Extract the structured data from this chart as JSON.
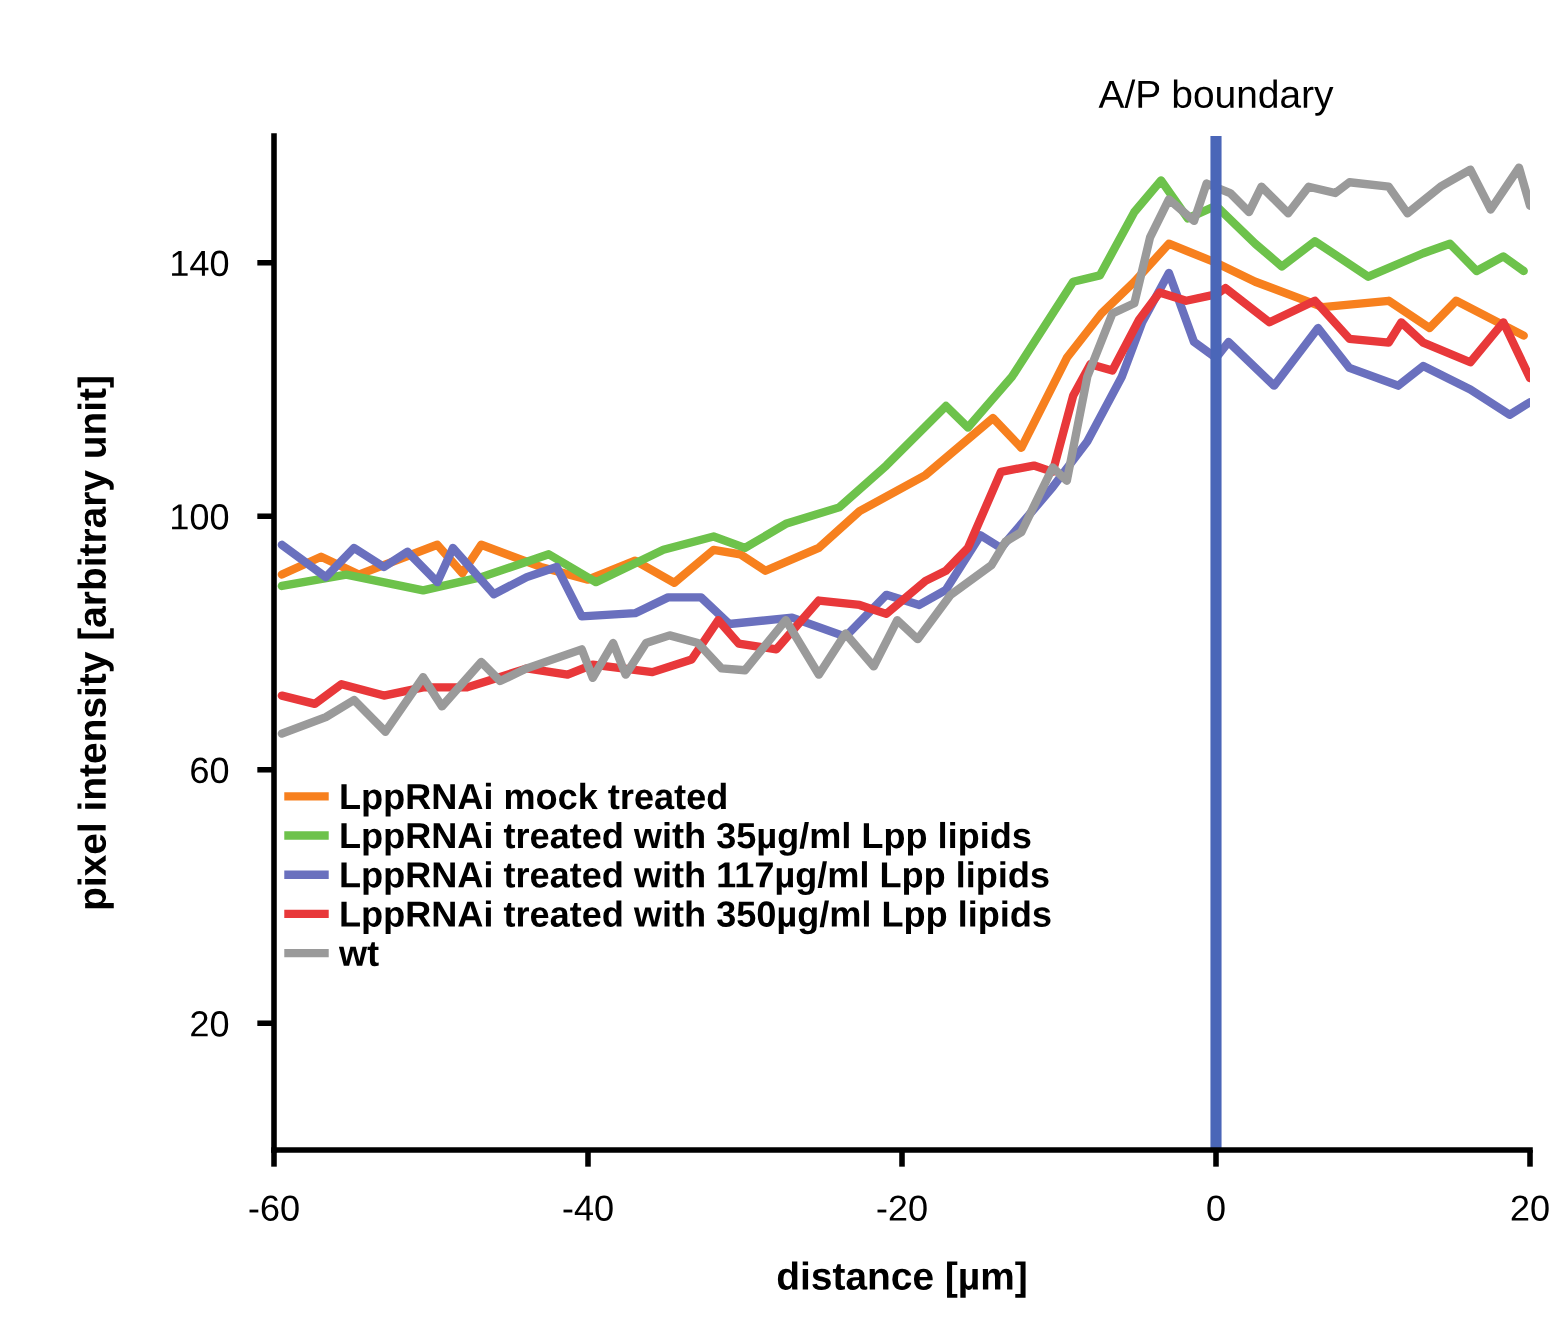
{
  "chart_data": {
    "type": "line",
    "xlabel": "distance [µm]",
    "ylabel": "pixel intensity [arbitrary unit]",
    "xlim": [
      -60,
      20
    ],
    "xticks": [
      -60,
      -40,
      -20,
      0,
      20
    ],
    "ylim": [
      0,
      160
    ],
    "yticks": [
      20,
      60,
      100,
      140
    ],
    "grid": false,
    "legend": "bottom left",
    "marker": "none",
    "line_style": "solid",
    "ref_lines": [
      {
        "axis": "x",
        "value": 0,
        "label": "A/P boundary",
        "color": "#4a66b8"
      }
    ],
    "series": [
      {
        "name": "LppRNAi mock treated",
        "color": "#f7801e",
        "x": [
          -59.5,
          -57,
          -54.6,
          -49.6,
          -48,
          -46.8,
          -43,
          -40,
          -37,
          -34.5,
          -32,
          -30.3,
          -28.7,
          -25.3,
          -22.7,
          -18.5,
          -14.2,
          -12.4,
          -9.5,
          -7.3,
          -5.2,
          -3,
          0,
          2.5,
          6.8,
          11,
          13.6,
          15.3,
          19.6
        ],
        "values": [
          90.8,
          93.6,
          90.8,
          95.5,
          91,
          95.5,
          92,
          90,
          93,
          89.5,
          94.7,
          94,
          91.4,
          95,
          100.8,
          106.5,
          115.5,
          110.8,
          125,
          132,
          137,
          143,
          140,
          137,
          133,
          134,
          129.7,
          134,
          128.5
        ]
      },
      {
        "name": "LppRNAi treated with 35µg/ml Lpp lipids",
        "color": "#6dc24b",
        "x": [
          -59.5,
          -55.4,
          -50.5,
          -46.8,
          -42.5,
          -39.5,
          -35.2,
          -32,
          -30,
          -27.4,
          -24,
          -21,
          -17.2,
          -15.8,
          -13,
          -9.1,
          -7.4,
          -5.2,
          -3.5,
          -1.8,
          0,
          2.5,
          4.2,
          6.3,
          9.7,
          13.2,
          14.9,
          16.6,
          18.3,
          19.6
        ],
        "values": [
          89,
          90.8,
          88.3,
          90.4,
          94,
          89.6,
          94.7,
          96.8,
          95,
          98.8,
          101.4,
          108,
          117.4,
          114,
          122,
          137,
          138,
          148,
          153,
          147,
          149,
          143,
          139.4,
          143.4,
          137.8,
          141.5,
          143,
          138.7,
          141,
          138.7
        ]
      },
      {
        "name": "LppRNAi treated with 117µg/ml Lpp lipids",
        "color": "#6a70be",
        "x": [
          -59.5,
          -56.7,
          -54.9,
          -53,
          -51.5,
          -49.6,
          -48.6,
          -46,
          -43.9,
          -42,
          -40.4,
          -37,
          -34.9,
          -32.8,
          -31,
          -27,
          -23.6,
          -21,
          -18.9,
          -17.2,
          -15,
          -13.7,
          -10.4,
          -8.2,
          -6,
          -4.7,
          -3,
          -1.4,
          0,
          0.8,
          3.7,
          6.5,
          8.5,
          11.6,
          13.2,
          16.2,
          18.7,
          20
        ],
        "values": [
          95.5,
          90.4,
          95,
          92,
          94.4,
          89.6,
          95,
          87.7,
          90.4,
          92,
          84.2,
          84.7,
          87.2,
          87.2,
          83,
          84,
          81,
          87.6,
          86,
          88.4,
          97,
          95,
          104.6,
          111.8,
          122,
          130.6,
          138.4,
          127.5,
          125,
          127.5,
          120.6,
          129.7,
          123.4,
          120.6,
          123.7,
          120,
          116,
          118
        ]
      },
      {
        "name": "LppRNAi treated with 350µg/ml Lpp lipids",
        "color": "#e8383a",
        "x": [
          -59.5,
          -57.4,
          -55.7,
          -53,
          -50.5,
          -47.7,
          -46.4,
          -43.9,
          -41.3,
          -39.7,
          -35.9,
          -33.4,
          -31.7,
          -30.4,
          -28,
          -25.3,
          -22.7,
          -21,
          -18.5,
          -17.2,
          -15.8,
          -13.7,
          -11.6,
          -10.4,
          -9.1,
          -8,
          -6.6,
          -4.9,
          -3.6,
          -1.9,
          0,
          0.6,
          3.4,
          6.3,
          8.5,
          11,
          11.8,
          13.2,
          16.2,
          18.3,
          20
        ],
        "values": [
          71.7,
          70.4,
          73.5,
          71.7,
          73,
          73,
          74,
          76,
          75,
          76.6,
          75.4,
          77.4,
          83.6,
          79.9,
          79,
          86.7,
          86,
          84.6,
          89.8,
          91.4,
          95,
          107,
          108,
          107,
          119,
          124,
          123,
          131,
          135.3,
          134,
          135,
          136,
          130.6,
          134,
          128,
          127.4,
          130.6,
          127.4,
          124.3,
          130.6,
          121.8
        ]
      },
      {
        "name": "wt",
        "color": "#9a9a9a",
        "x": [
          -59.5,
          -56.7,
          -54.9,
          -52.9,
          -50.5,
          -49.3,
          -46.8,
          -45.6,
          -43.9,
          -40.4,
          -39.7,
          -38.4,
          -37.6,
          -36.3,
          -34.8,
          -33,
          -31.5,
          -30,
          -27.4,
          -25.3,
          -23.6,
          -21.8,
          -20.3,
          -19,
          -16.9,
          -14.3,
          -13.4,
          -12.4,
          -10.4,
          -9.5,
          -8.2,
          -6.6,
          -5.2,
          -4.2,
          -3,
          -1.4,
          -0.6,
          0.9,
          2.1,
          2.9,
          4.6,
          5.9,
          7.6,
          8.5,
          11,
          12.2,
          14.3,
          16.2,
          17.5,
          19.3,
          20
        ],
        "values": [
          65.7,
          68.3,
          71,
          66,
          74.6,
          70,
          77,
          74,
          76,
          79,
          74.5,
          80,
          75,
          80,
          81.2,
          80,
          76,
          75.7,
          83.6,
          75,
          81.5,
          76.3,
          83.6,
          80.6,
          87.6,
          92.3,
          96,
          97.5,
          107.7,
          105.6,
          122,
          132,
          133.6,
          144,
          150,
          146.6,
          152.5,
          151,
          148,
          152,
          147.8,
          152,
          151,
          152.7,
          152,
          147.8,
          152,
          154.7,
          148.4,
          155,
          149
        ]
      }
    ]
  }
}
